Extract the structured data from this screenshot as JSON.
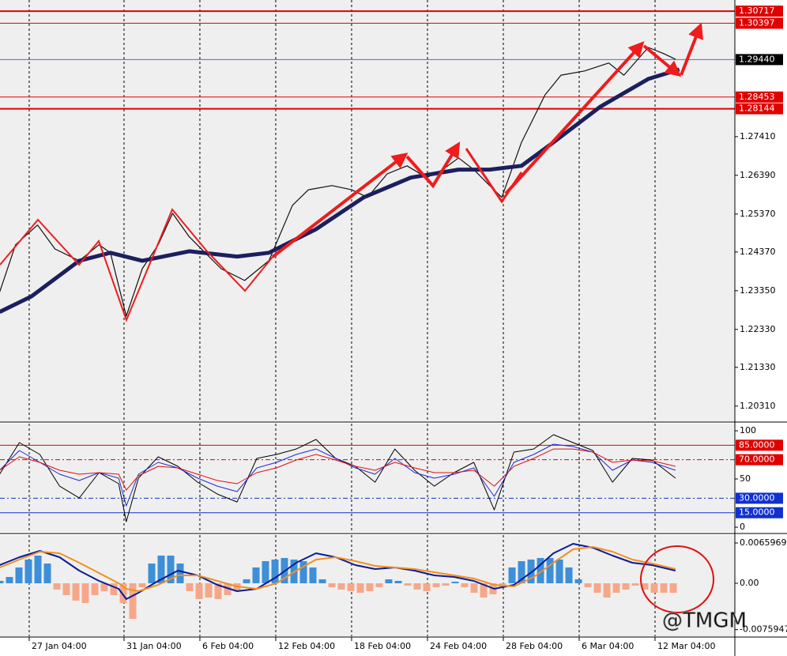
{
  "chart_data": [
    {
      "type": "line",
      "xlim": [
        -0.385,
        9.302
      ],
      "ylim": [
        1.1991,
        1.3101
      ],
      "yticks": [
        {
          "value": 1.2741,
          "label": "1.27410"
        },
        {
          "value": 1.2639,
          "label": "1.26390"
        },
        {
          "value": 1.2537,
          "label": "1.25370"
        },
        {
          "value": 1.2437,
          "label": "1.24370"
        },
        {
          "value": 1.2335,
          "label": "1.23350"
        },
        {
          "value": 1.2233,
          "label": "1.22330"
        },
        {
          "value": 1.2133,
          "label": "1.21330"
        },
        {
          "value": 1.2031,
          "label": "1.20310"
        }
      ],
      "levels": [
        {
          "value": 1.30717,
          "label": "1.30717",
          "color": "#e00000",
          "label_bg": "#e00000",
          "width": 2
        },
        {
          "value": 1.30397,
          "label": "1.30397",
          "color": "#e00000",
          "label_bg": "#e00000",
          "width": 1
        },
        {
          "value": 1.2944,
          "label": "1.29440",
          "color": "#4a6fd8",
          "label_bg": "#000000",
          "width": 1
        },
        {
          "value": 1.28453,
          "label": "1.28453",
          "color": "#e00000",
          "label_bg": "#e00000",
          "width": 1
        },
        {
          "value": 1.28144,
          "label": "1.28144",
          "color": "#e00000",
          "label_bg": "#e00000",
          "width": 2
        }
      ],
      "series": [
        {
          "color": "#111111",
          "width": 1.2,
          "x": [
            -0.39,
            -0.18,
            0.11,
            0.34,
            0.66,
            0.92,
            1.07,
            1.28,
            1.49,
            1.7,
            1.89,
            2.11,
            2.32,
            2.53,
            2.84,
            3.16,
            3.47,
            3.68,
            3.99,
            4.25,
            4.46,
            4.72,
            4.98,
            5.24,
            5.45,
            5.66,
            5.86,
            6.07,
            6.23,
            6.49,
            6.8,
            7.01,
            7.32,
            7.64,
            7.84,
            8.16,
            8.36,
            8.52
          ],
          "values": [
            1.2331,
            1.2456,
            1.2508,
            1.2445,
            1.2414,
            1.2456,
            1.2435,
            1.2268,
            1.2393,
            1.2456,
            1.2539,
            1.2477,
            1.2435,
            1.2393,
            1.2362,
            1.2414,
            1.256,
            1.2601,
            1.2612,
            1.2601,
            1.2581,
            1.2643,
            1.2664,
            1.2633,
            1.2654,
            1.2685,
            1.2654,
            1.2612,
            1.2581,
            1.2726,
            1.2851,
            1.2903,
            1.2914,
            1.2935,
            1.2903,
            1.2976,
            1.296,
            1.2945
          ]
        },
        {
          "color": "#1c1f5e",
          "width": 5,
          "x": [
            -0.39,
            0.03,
            0.66,
            1.07,
            1.49,
            2.11,
            2.74,
            3.16,
            3.78,
            4.41,
            5.03,
            5.66,
            6.07,
            6.49,
            6.91,
            7.53,
            8.16,
            8.57
          ],
          "values": [
            1.2279,
            1.232,
            1.2414,
            1.2435,
            1.2414,
            1.2439,
            1.2425,
            1.2435,
            1.2497,
            1.2581,
            1.2633,
            1.2654,
            1.2654,
            1.2664,
            1.2726,
            1.282,
            1.2893,
            1.2918
          ]
        }
      ]
    },
    {
      "type": "line",
      "xlim": [
        -0.385,
        9.302
      ],
      "ylim": [
        -4.9,
        107.4
      ],
      "yticks": [
        100,
        50,
        0
      ],
      "levels": [
        {
          "value": 85,
          "label": "85.0000",
          "color": "#e00000",
          "label_bg": "#e00000",
          "width": 1
        },
        {
          "value": 70,
          "label": "70.0000",
          "color": "#e00000",
          "label_bg": "#e00000",
          "width": 1,
          "dash": "6,3,2,3"
        },
        {
          "value": 30,
          "label": "30.0000",
          "color": "#1030d0",
          "label_bg": "#1030d0",
          "width": 1,
          "dash": "6,3,2,3"
        },
        {
          "value": 15,
          "label": "15.0000",
          "color": "#1030d0",
          "label_bg": "#1030d0",
          "width": 1
        }
      ],
      "x": [
        -0.39,
        -0.13,
        0.14,
        0.4,
        0.66,
        0.92,
        1.18,
        1.28,
        1.44,
        1.7,
        1.96,
        2.22,
        2.48,
        2.74,
        3.0,
        3.26,
        3.52,
        3.78,
        4.04,
        4.3,
        4.56,
        4.82,
        5.08,
        5.34,
        5.6,
        5.86,
        6.13,
        6.39,
        6.65,
        6.91,
        7.17,
        7.43,
        7.69,
        7.95,
        8.21,
        8.52
      ],
      "series": [
        {
          "color": "#000000",
          "width": 1,
          "values": [
            54.9,
            87.7,
            75.4,
            42.6,
            30.3,
            56.6,
            45.1,
            5.7,
            50.8,
            73.0,
            63.1,
            46.7,
            34.4,
            26.2,
            71.3,
            75.4,
            81.1,
            91.0,
            71.3,
            63.1,
            46.7,
            81.1,
            59.0,
            42.6,
            56.6,
            67.2,
            18.0,
            77.9,
            81.1,
            95.9,
            87.7,
            79.5,
            46.7,
            71.3,
            69.7,
            50.8
          ]
        },
        {
          "color": "#1a2cd8",
          "width": 1,
          "values": [
            59.0,
            79.5,
            67.2,
            54.9,
            48.4,
            56.6,
            50.8,
            22.1,
            54.9,
            67.2,
            61.5,
            50.8,
            42.6,
            36.9,
            61.5,
            67.2,
            75.4,
            81.1,
            71.3,
            61.5,
            54.9,
            71.3,
            56.6,
            50.8,
            54.9,
            61.5,
            32.0,
            67.2,
            75.4,
            86.1,
            83.6,
            77.9,
            59.0,
            69.7,
            67.2,
            59.0
          ]
        },
        {
          "color": "#e01010",
          "width": 1,
          "values": [
            59.0,
            73.0,
            67.2,
            59.0,
            54.9,
            56.6,
            54.9,
            38.5,
            53.3,
            63.1,
            61.5,
            54.9,
            48.4,
            45.1,
            56.6,
            61.5,
            69.7,
            75.4,
            69.7,
            63.1,
            59.0,
            67.2,
            61.5,
            56.6,
            56.6,
            59.0,
            42.6,
            63.1,
            71.3,
            81.1,
            81.1,
            77.9,
            67.2,
            69.7,
            68.9,
            63.1
          ]
        }
      ]
    },
    {
      "type": "macd",
      "xlim": [
        -0.385,
        9.302
      ],
      "ylim": [
        -0.00867,
        0.00789
      ],
      "yticks": [
        0.0065969,
        {
          "value": 0,
          "label": "0.00"
        },
        -0.0075947
      ],
      "xticks": [
        {
          "value": 0,
          "label": "27 Jan 04:00"
        },
        {
          "value": 1.25,
          "label": "31 Jan 04:00"
        },
        {
          "value": 2.25,
          "label": "6 Feb 04:00"
        },
        {
          "value": 3.25,
          "label": "12 Feb 04:00"
        },
        {
          "value": 4.25,
          "label": "18 Feb 04:00"
        },
        {
          "value": 5.25,
          "label": "24 Feb 04:00"
        },
        {
          "value": 6.25,
          "label": "28 Feb 04:00"
        },
        {
          "value": 7.25,
          "label": "6 Mar 04:00"
        },
        {
          "value": 8.25,
          "label": "12 Mar 04:00"
        }
      ],
      "bars": {
        "positive_color": "#3d8fd8",
        "negative_color": "#f5a889",
        "x": [
          -0.385,
          -0.26,
          -0.135,
          -0.01,
          0.115,
          0.24,
          0.365,
          0.49,
          0.615,
          0.74,
          0.865,
          0.99,
          1.115,
          1.24,
          1.365,
          1.49,
          1.615,
          1.74,
          1.865,
          1.99,
          2.115,
          2.24,
          2.365,
          2.49,
          2.615,
          2.74,
          2.865,
          2.99,
          3.115,
          3.24,
          3.365,
          3.49,
          3.615,
          3.74,
          3.865,
          3.99,
          4.115,
          4.24,
          4.365,
          4.49,
          4.615,
          4.74,
          4.865,
          4.99,
          5.115,
          5.24,
          5.365,
          5.49,
          5.615,
          5.74,
          5.865,
          5.99,
          6.115,
          6.24,
          6.365,
          6.49,
          6.615,
          6.74,
          6.865,
          6.99,
          7.115,
          7.24,
          7.365,
          7.49,
          7.615,
          7.74,
          7.865,
          7.99,
          8.115,
          8.24,
          8.365,
          8.49
        ],
        "values": [
          0.00039,
          0.00103,
          0.00259,
          0.00388,
          0.00453,
          0.00323,
          -0.00103,
          -0.00194,
          -0.00284,
          -0.00323,
          -0.00194,
          -0.00129,
          -0.00194,
          -0.00323,
          -0.00582,
          -0.00065,
          0.00323,
          0.00453,
          0.00453,
          0.00323,
          -0.00129,
          -0.00259,
          -0.00233,
          -0.00259,
          -0.00194,
          -0.00129,
          0.00065,
          0.00259,
          0.00362,
          0.00388,
          0.00414,
          0.00388,
          0.00362,
          0.00259,
          0.00065,
          -0.00065,
          -0.00103,
          -0.00129,
          -0.00155,
          -0.00129,
          -0.00065,
          0.00065,
          0.00039,
          -0.00039,
          -0.00103,
          -0.00129,
          -0.00065,
          -0.00039,
          0.00026,
          -0.00065,
          -0.00155,
          -0.00233,
          -0.00181,
          -0.00065,
          0.00259,
          0.00362,
          0.00388,
          0.00414,
          0.00414,
          0.00388,
          0.00259,
          0.00065,
          -0.00065,
          -0.00155,
          -0.00233,
          -0.00155,
          -0.00103,
          -0.00039,
          -0.00103,
          -0.00155,
          -0.00155,
          -0.00155
        ]
      },
      "x": [
        -0.39,
        -0.13,
        0.14,
        0.4,
        0.66,
        0.92,
        1.18,
        1.28,
        1.44,
        1.7,
        1.96,
        2.22,
        2.48,
        2.74,
        3.0,
        3.26,
        3.52,
        3.78,
        4.04,
        4.3,
        4.56,
        4.82,
        5.08,
        5.34,
        5.6,
        5.86,
        6.13,
        6.39,
        6.65,
        6.91,
        7.17,
        7.43,
        7.69,
        7.95,
        8.21,
        8.52
      ],
      "series": [
        {
          "color": "#0a1a9a",
          "width": 2,
          "values": [
            0.00297,
            0.00427,
            0.0053,
            0.00427,
            0.00207,
            0.00039,
            -0.00091,
            -0.00259,
            -0.00155,
            0.00039,
            0.00207,
            0.00129,
            -0.00026,
            -0.00129,
            -0.00091,
            0.00103,
            0.00336,
            0.00491,
            0.00427,
            0.00297,
            0.00233,
            0.00259,
            0.00207,
            0.00129,
            0.00103,
            0.00039,
            -0.00091,
            -0.00026,
            0.00207,
            0.00491,
            0.00647,
            0.00582,
            0.00453,
            0.00336,
            0.00297,
            0.00207
          ]
        },
        {
          "color": "#f09020",
          "width": 2,
          "values": [
            0.00259,
            0.00388,
            0.00517,
            0.00491,
            0.00336,
            0.00168,
            0,
            -0.00091,
            -0.00129,
            -0.00026,
            0.00129,
            0.00129,
            0.00039,
            -0.00052,
            -0.00091,
            0,
            0.00207,
            0.00388,
            0.00427,
            0.00362,
            0.00284,
            0.00259,
            0.00233,
            0.00181,
            0.00129,
            0.00078,
            -0.00026,
            -0.00052,
            0.00103,
            0.00336,
            0.00556,
            0.00595,
            0.00517,
            0.00388,
            0.00323,
            0.00233
          ]
        }
      ]
    }
  ],
  "watermark": "@TMGM"
}
